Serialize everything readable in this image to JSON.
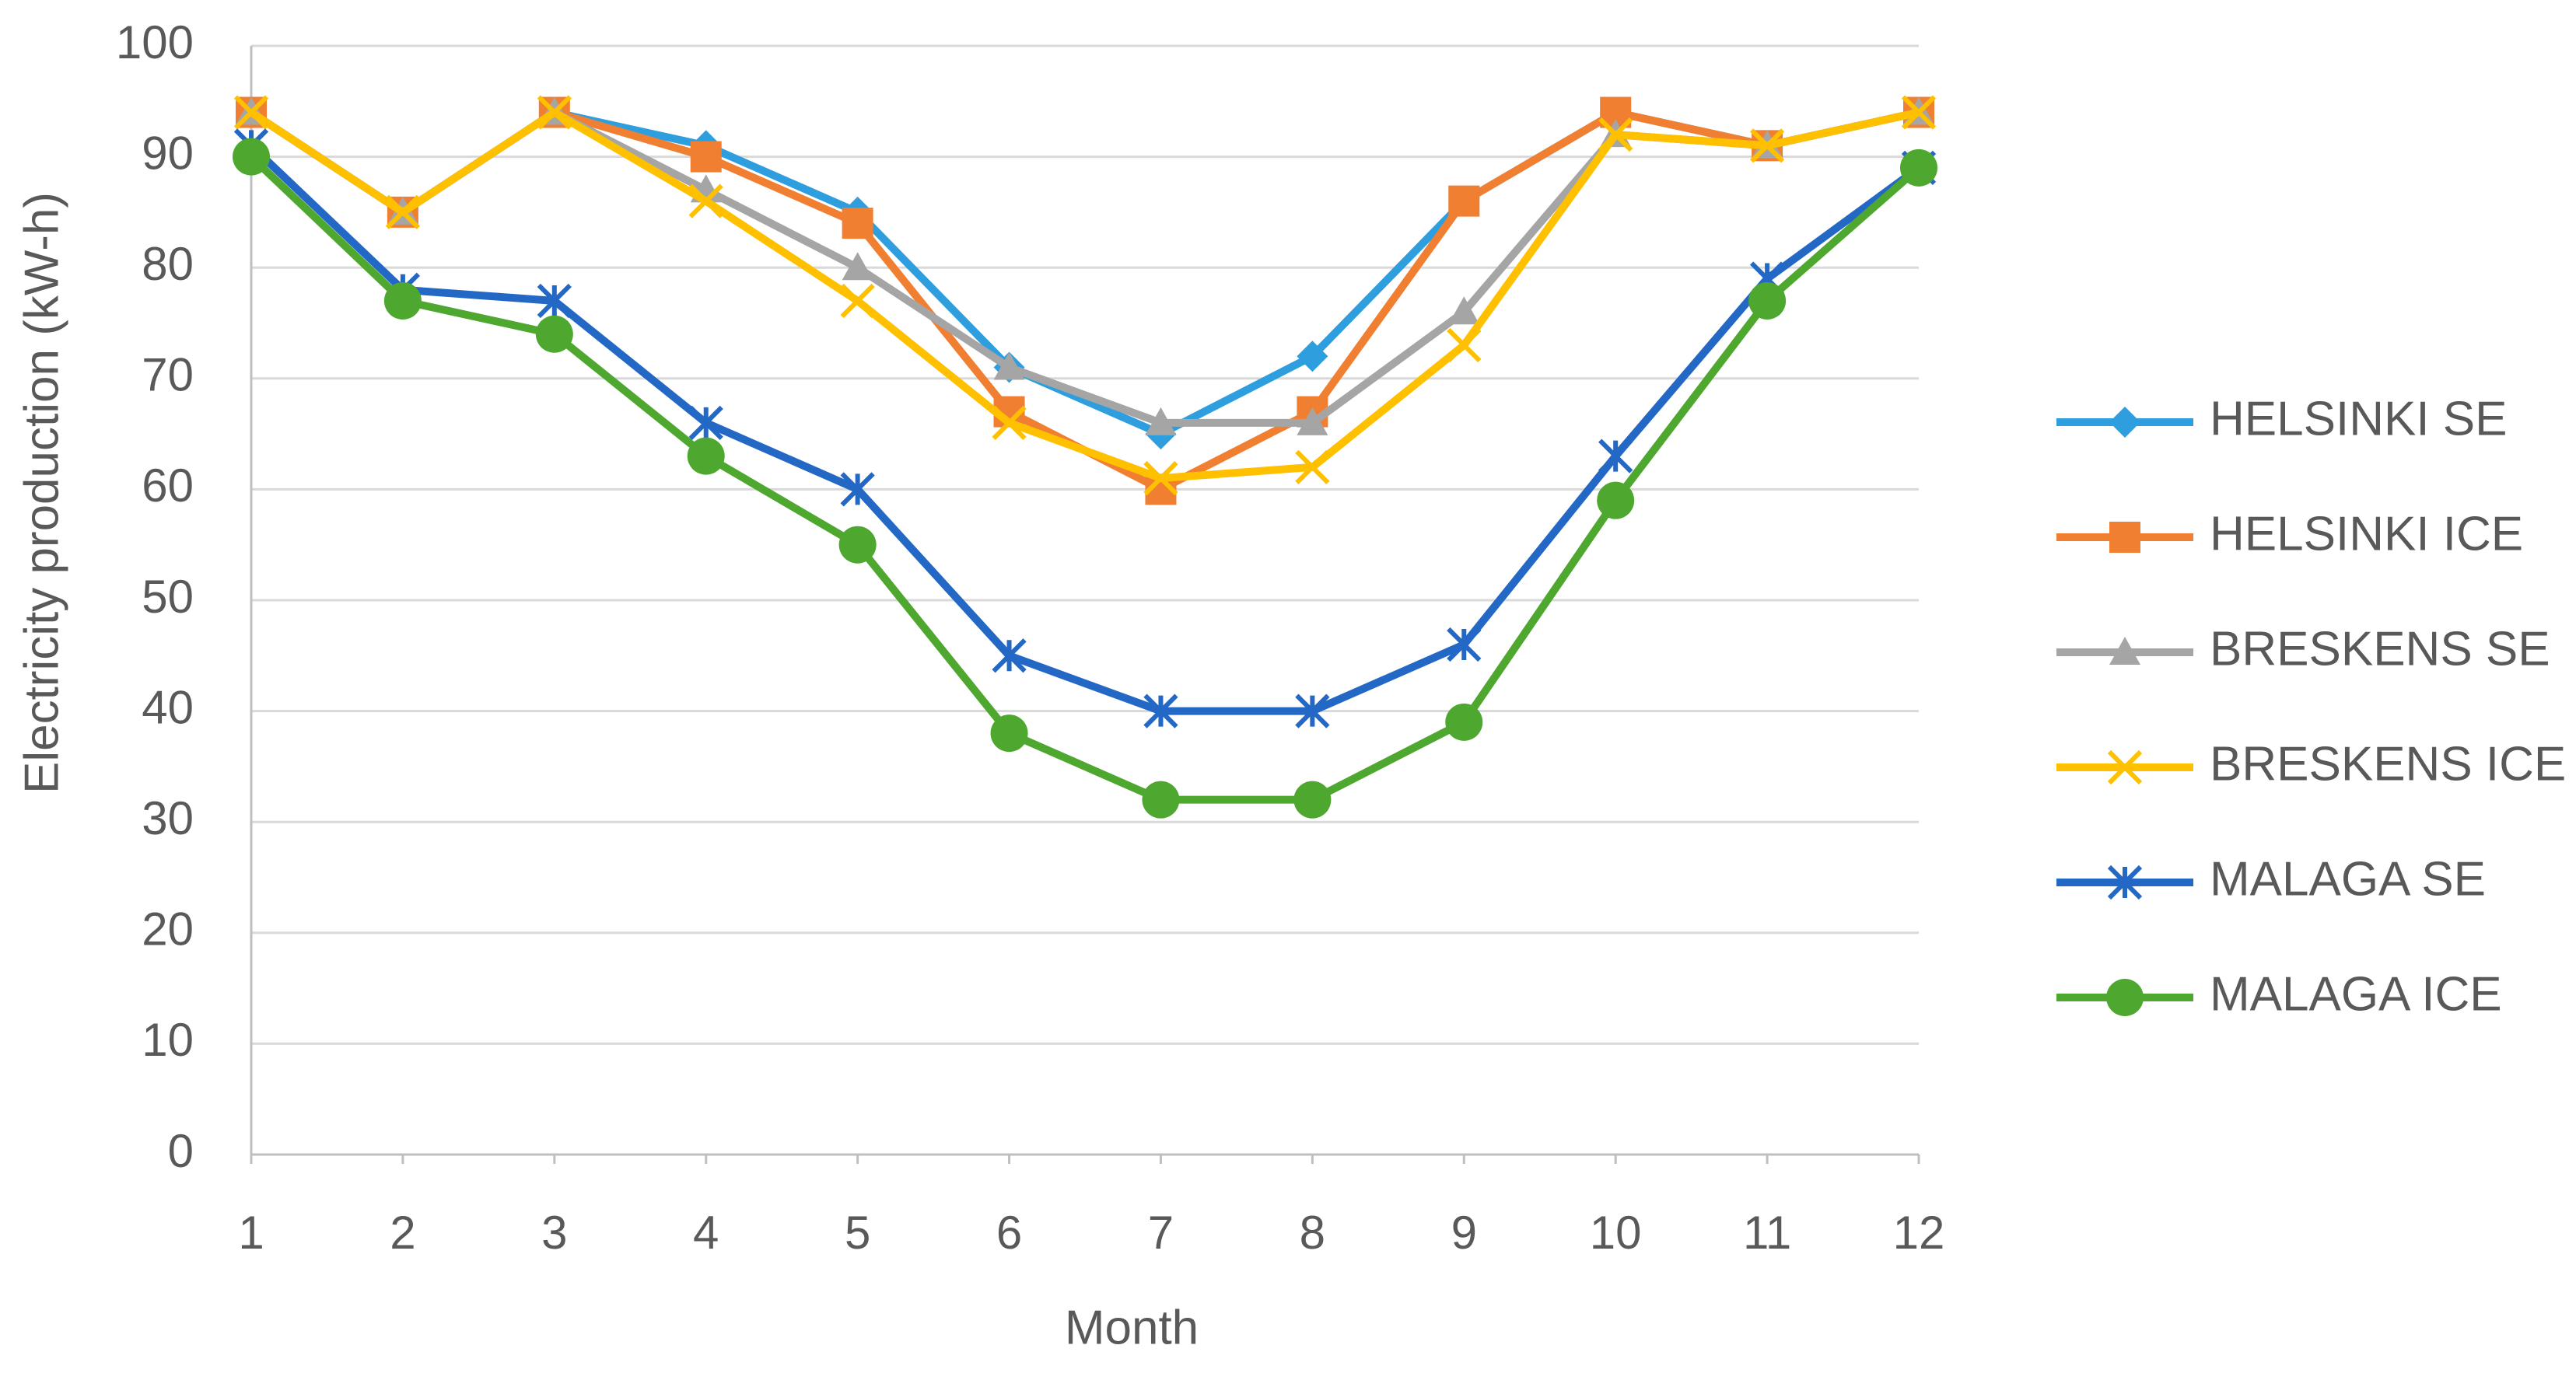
{
  "chart_data": {
    "type": "line",
    "x_label": "Month",
    "y_label": "Electricity production (kW-h)",
    "x": [
      1,
      2,
      3,
      4,
      5,
      6,
      7,
      8,
      9,
      10,
      11,
      12
    ],
    "xlim": [
      1,
      12
    ],
    "xticks": [
      1,
      2,
      3,
      4,
      5,
      6,
      7,
      8,
      9,
      10,
      11,
      12
    ],
    "ylim": [
      0,
      100
    ],
    "yticks": [
      0,
      10,
      20,
      30,
      40,
      50,
      60,
      70,
      80,
      90,
      100
    ],
    "grid": true,
    "legend": "right",
    "series": [
      {
        "name": "HELSINKI SE",
        "color": "#2e9ede",
        "marker": "diamond",
        "values": [
          94,
          85,
          94,
          91,
          85,
          71,
          65,
          72,
          86,
          94,
          91,
          94
        ]
      },
      {
        "name": "HELSINKI ICE",
        "color": "#f07f32",
        "marker": "square",
        "values": [
          94,
          85,
          94,
          90,
          84,
          67,
          60,
          67,
          86,
          94,
          91,
          94
        ]
      },
      {
        "name": "BRESKENS SE",
        "color": "#a5a5a5",
        "marker": "triangle",
        "values": [
          94,
          85,
          94,
          87,
          80,
          71,
          66,
          66,
          76,
          92,
          91,
          94
        ]
      },
      {
        "name": "BRESKENS ICE",
        "color": "#ffc000",
        "marker": "x",
        "values": [
          94,
          85,
          94,
          86,
          77,
          66,
          61,
          62,
          73,
          92,
          91,
          94
        ]
      },
      {
        "name": "MALAGA SE",
        "color": "#2468c6",
        "marker": "asterisk",
        "values": [
          91,
          78,
          77,
          66,
          60,
          45,
          40,
          40,
          46,
          63,
          79,
          89
        ]
      },
      {
        "name": "MALAGA ICE",
        "color": "#4ea72e",
        "marker": "circle",
        "values": [
          90,
          77,
          74,
          63,
          55,
          38,
          32,
          32,
          39,
          59,
          77,
          89
        ]
      }
    ]
  }
}
